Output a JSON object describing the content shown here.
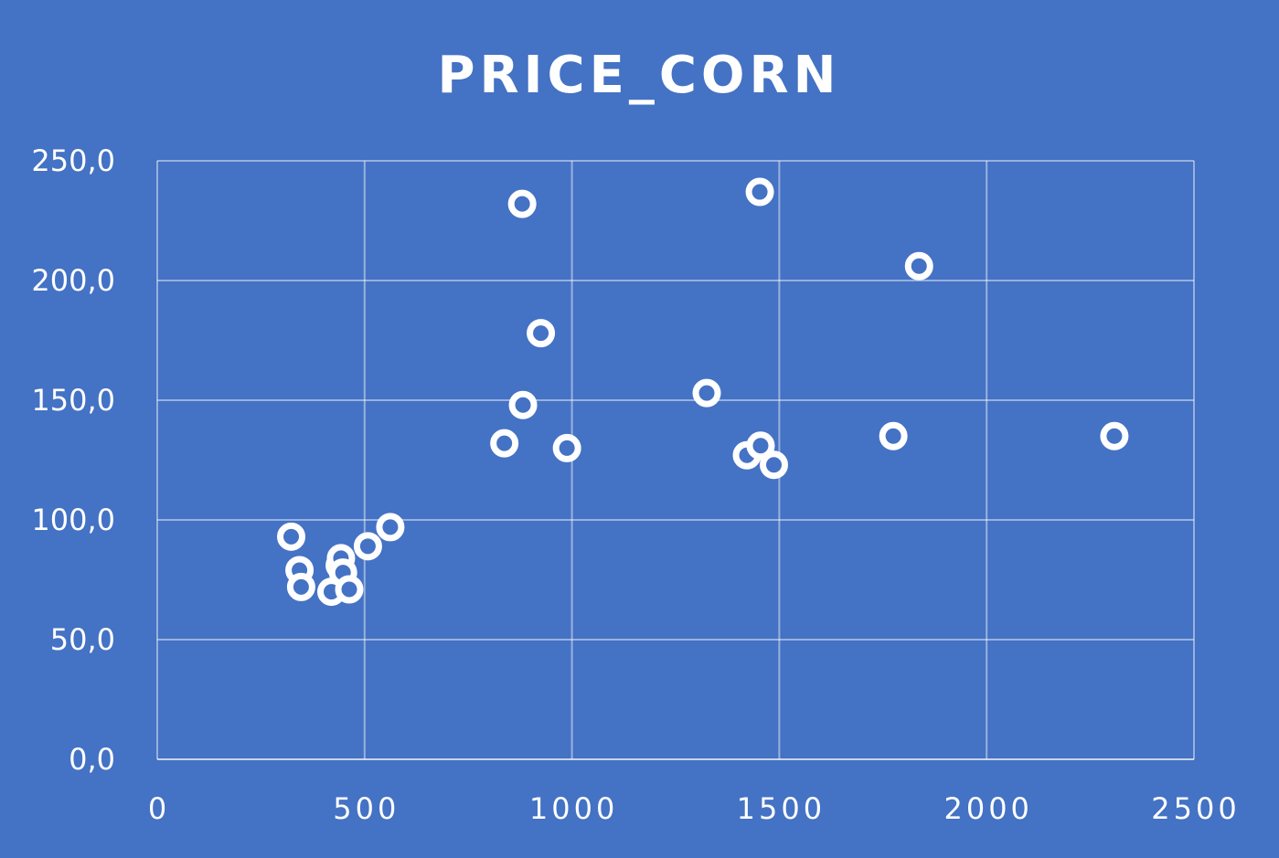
{
  "chart_data": {
    "type": "scatter",
    "title": "PRICE_CORN",
    "xlabel": "",
    "ylabel": "",
    "xlim": [
      0,
      2500
    ],
    "ylim": [
      0,
      250
    ],
    "x_ticks": [
      0,
      500,
      1000,
      1500,
      2000,
      2500
    ],
    "x_tick_labels": [
      "0",
      "500",
      "1000",
      "1500",
      "2000",
      "2500"
    ],
    "y_ticks": [
      0,
      50,
      100,
      150,
      200,
      250
    ],
    "y_tick_labels": [
      "0,0",
      "50,0",
      "100,0",
      "150,0",
      "200,0",
      "250,0"
    ],
    "grid": true,
    "legend": "none",
    "colors": {
      "background": "#4472C4",
      "marker_stroke": "#FFFFFF",
      "text": "#FFFFFF"
    },
    "series": [
      {
        "points": [
          {
            "x": 323,
            "y": 93
          },
          {
            "x": 343,
            "y": 79
          },
          {
            "x": 347,
            "y": 72
          },
          {
            "x": 420,
            "y": 70
          },
          {
            "x": 440,
            "y": 81
          },
          {
            "x": 443,
            "y": 84
          },
          {
            "x": 448,
            "y": 78
          },
          {
            "x": 463,
            "y": 71
          },
          {
            "x": 508,
            "y": 89
          },
          {
            "x": 562,
            "y": 97
          },
          {
            "x": 837,
            "y": 132
          },
          {
            "x": 880,
            "y": 232
          },
          {
            "x": 882,
            "y": 148
          },
          {
            "x": 925,
            "y": 178
          },
          {
            "x": 988,
            "y": 130
          },
          {
            "x": 1325,
            "y": 153
          },
          {
            "x": 1422,
            "y": 127
          },
          {
            "x": 1453,
            "y": 237
          },
          {
            "x": 1455,
            "y": 131
          },
          {
            "x": 1487,
            "y": 123
          },
          {
            "x": 1775,
            "y": 135
          },
          {
            "x": 1837,
            "y": 206
          },
          {
            "x": 2308,
            "y": 135
          }
        ]
      }
    ]
  }
}
